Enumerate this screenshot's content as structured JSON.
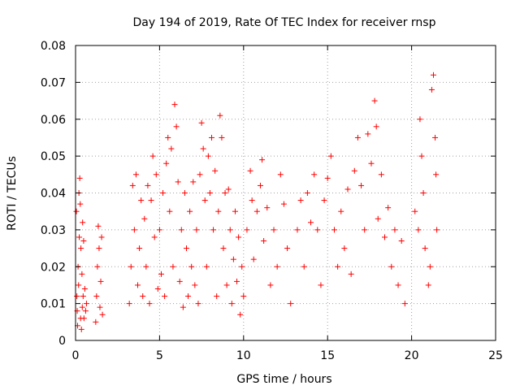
{
  "chart_data": {
    "type": "scatter",
    "title": "Day 194 of 2019, Rate Of TEC Index for receiver rnsp",
    "xlabel": "GPS time / hours",
    "ylabel": "ROTI / TECUs",
    "xlim": [
      0,
      25
    ],
    "ylim": [
      0,
      0.08
    ],
    "x_ticks": [
      "0",
      "5",
      "10",
      "15",
      "20",
      "25"
    ],
    "y_ticks": [
      "0",
      "0.01",
      "0.02",
      "0.03",
      "0.04",
      "0.05",
      "0.06",
      "0.07",
      "0.08"
    ],
    "x_tick_values": [
      0,
      5,
      10,
      15,
      20,
      25
    ],
    "y_tick_values": [
      0,
      0.01,
      0.02,
      0.03,
      0.04,
      0.05,
      0.06,
      0.07,
      0.08
    ],
    "grid": true,
    "marker": "+",
    "colors": {
      "series": "#ff0000",
      "grid": "#a0a0a0",
      "axis": "#000000"
    },
    "series": [
      {
        "points": [
          [
            0.05,
            0.035
          ],
          [
            0.08,
            0.012
          ],
          [
            0.1,
            0.008
          ],
          [
            0.12,
            0.004
          ],
          [
            0.15,
            0.02
          ],
          [
            0.18,
            0.015
          ],
          [
            0.2,
            0.04
          ],
          [
            0.22,
            0.028
          ],
          [
            0.25,
            0.044
          ],
          [
            0.28,
            0.037
          ],
          [
            0.3,
            0.006
          ],
          [
            0.32,
            0.025
          ],
          [
            0.35,
            0.003
          ],
          [
            0.38,
            0.018
          ],
          [
            0.4,
            0.009
          ],
          [
            0.42,
            0.032
          ],
          [
            0.45,
            0.012
          ],
          [
            0.48,
            0.027
          ],
          [
            0.5,
            0.006
          ],
          [
            0.55,
            0.014
          ],
          [
            0.6,
            0.008
          ],
          [
            0.65,
            0.01
          ],
          [
            1.2,
            0.005
          ],
          [
            1.25,
            0.012
          ],
          [
            1.3,
            0.02
          ],
          [
            1.35,
            0.031
          ],
          [
            1.4,
            0.025
          ],
          [
            1.45,
            0.009
          ],
          [
            1.5,
            0.016
          ],
          [
            1.55,
            0.028
          ],
          [
            1.6,
            0.007
          ],
          [
            3.2,
            0.01
          ],
          [
            3.3,
            0.02
          ],
          [
            3.4,
            0.042
          ],
          [
            3.5,
            0.03
          ],
          [
            3.6,
            0.045
          ],
          [
            3.7,
            0.015
          ],
          [
            3.8,
            0.025
          ],
          [
            3.9,
            0.038
          ],
          [
            4.0,
            0.012
          ],
          [
            4.1,
            0.033
          ],
          [
            4.2,
            0.02
          ],
          [
            4.3,
            0.042
          ],
          [
            4.4,
            0.01
          ],
          [
            4.5,
            0.038
          ],
          [
            4.6,
            0.05
          ],
          [
            4.7,
            0.028
          ],
          [
            4.8,
            0.045
          ],
          [
            4.9,
            0.014
          ],
          [
            5.0,
            0.03
          ],
          [
            5.1,
            0.018
          ],
          [
            5.2,
            0.04
          ],
          [
            5.3,
            0.012
          ],
          [
            5.4,
            0.048
          ],
          [
            5.5,
            0.055
          ],
          [
            5.6,
            0.035
          ],
          [
            5.7,
            0.052
          ],
          [
            5.8,
            0.02
          ],
          [
            5.9,
            0.064
          ],
          [
            6.0,
            0.058
          ],
          [
            6.1,
            0.043
          ],
          [
            6.2,
            0.016
          ],
          [
            6.3,
            0.03
          ],
          [
            6.4,
            0.009
          ],
          [
            6.5,
            0.04
          ],
          [
            6.6,
            0.025
          ],
          [
            6.7,
            0.012
          ],
          [
            6.8,
            0.035
          ],
          [
            6.9,
            0.02
          ],
          [
            7.0,
            0.043
          ],
          [
            7.1,
            0.015
          ],
          [
            7.2,
            0.03
          ],
          [
            7.3,
            0.01
          ],
          [
            7.4,
            0.045
          ],
          [
            7.5,
            0.059
          ],
          [
            7.6,
            0.052
          ],
          [
            7.7,
            0.038
          ],
          [
            7.8,
            0.02
          ],
          [
            7.9,
            0.05
          ],
          [
            8.0,
            0.04
          ],
          [
            8.1,
            0.055
          ],
          [
            8.2,
            0.03
          ],
          [
            8.3,
            0.046
          ],
          [
            8.4,
            0.012
          ],
          [
            8.5,
            0.035
          ],
          [
            8.6,
            0.061
          ],
          [
            8.7,
            0.055
          ],
          [
            8.8,
            0.025
          ],
          [
            8.9,
            0.04
          ],
          [
            9.0,
            0.015
          ],
          [
            9.1,
            0.041
          ],
          [
            9.2,
            0.03
          ],
          [
            9.3,
            0.01
          ],
          [
            9.4,
            0.022
          ],
          [
            9.5,
            0.035
          ],
          [
            9.6,
            0.016
          ],
          [
            9.7,
            0.028
          ],
          [
            9.8,
            0.007
          ],
          [
            9.9,
            0.02
          ],
          [
            10.0,
            0.012
          ],
          [
            10.2,
            0.03
          ],
          [
            10.4,
            0.046
          ],
          [
            10.5,
            0.038
          ],
          [
            10.6,
            0.022
          ],
          [
            10.8,
            0.035
          ],
          [
            11.0,
            0.042
          ],
          [
            11.1,
            0.049
          ],
          [
            11.2,
            0.027
          ],
          [
            11.4,
            0.036
          ],
          [
            11.6,
            0.015
          ],
          [
            11.8,
            0.03
          ],
          [
            12.0,
            0.02
          ],
          [
            12.2,
            0.045
          ],
          [
            12.4,
            0.037
          ],
          [
            12.6,
            0.025
          ],
          [
            12.8,
            0.01
          ],
          [
            13.2,
            0.03
          ],
          [
            13.4,
            0.038
          ],
          [
            13.6,
            0.02
          ],
          [
            13.8,
            0.04
          ],
          [
            14.0,
            0.032
          ],
          [
            14.2,
            0.045
          ],
          [
            14.4,
            0.03
          ],
          [
            14.6,
            0.015
          ],
          [
            14.8,
            0.038
          ],
          [
            15.0,
            0.044
          ],
          [
            15.2,
            0.05
          ],
          [
            15.4,
            0.03
          ],
          [
            15.6,
            0.02
          ],
          [
            15.8,
            0.035
          ],
          [
            16.0,
            0.025
          ],
          [
            16.2,
            0.041
          ],
          [
            16.4,
            0.018
          ],
          [
            16.6,
            0.046
          ],
          [
            16.8,
            0.055
          ],
          [
            17.0,
            0.042
          ],
          [
            17.2,
            0.03
          ],
          [
            17.4,
            0.056
          ],
          [
            17.6,
            0.048
          ],
          [
            17.8,
            0.065
          ],
          [
            17.9,
            0.058
          ],
          [
            18.0,
            0.033
          ],
          [
            18.2,
            0.045
          ],
          [
            18.4,
            0.028
          ],
          [
            18.6,
            0.036
          ],
          [
            18.8,
            0.02
          ],
          [
            19.0,
            0.03
          ],
          [
            19.2,
            0.015
          ],
          [
            19.4,
            0.027
          ],
          [
            19.6,
            0.01
          ],
          [
            20.2,
            0.035
          ],
          [
            20.4,
            0.03
          ],
          [
            20.5,
            0.06
          ],
          [
            20.6,
            0.05
          ],
          [
            20.7,
            0.04
          ],
          [
            20.8,
            0.025
          ],
          [
            21.0,
            0.015
          ],
          [
            21.1,
            0.02
          ],
          [
            21.2,
            0.068
          ],
          [
            21.3,
            0.072
          ],
          [
            21.4,
            0.055
          ],
          [
            21.45,
            0.045
          ],
          [
            21.5,
            0.03
          ]
        ]
      }
    ]
  }
}
